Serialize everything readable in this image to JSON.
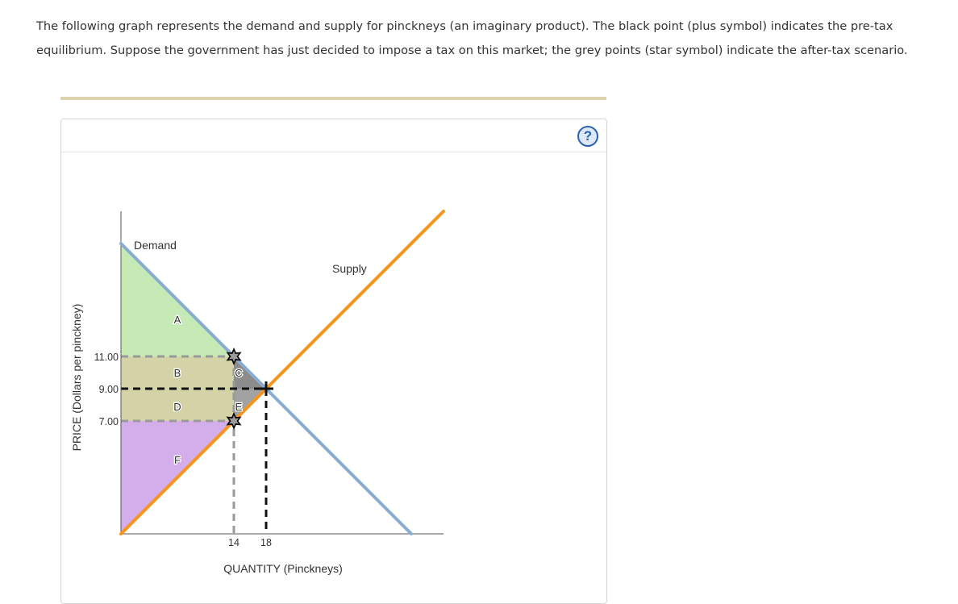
{
  "question": {
    "text": "The following graph represents the demand and supply for pinckneys (an imaginary product). The black point (plus symbol) indicates the pre-tax equilibrium. Suppose the government has just decided to impose a tax on this market; the grey points (star symbol) indicate the after-tax scenario."
  },
  "help": {
    "label": "?"
  },
  "colors": {
    "demand": "#89acd1",
    "supply": "#f7941d",
    "area_a": "#c5eab5",
    "area_bd": "#d4d3a8",
    "area_c": "#8c8c8c",
    "area_e": "#a2a2a2",
    "area_f": "#d4aeea",
    "pre_tax_point": "#000000",
    "after_tax_points": "#555555",
    "dash_grey": "#999999"
  },
  "chart_data": {
    "type": "line",
    "xlabel": "QUANTITY (Pinckneys)",
    "ylabel": "PRICE (Dollars per pinckney)",
    "xlim": [
      0,
      45
    ],
    "ylim": [
      0,
      20
    ],
    "x_ticks": [
      14,
      18
    ],
    "y_ticks": [
      "11.00",
      "9.00",
      "7.00"
    ],
    "series": [
      {
        "name": "Demand",
        "points": [
          [
            0,
            18
          ],
          [
            36,
            0
          ]
        ]
      },
      {
        "name": "Supply",
        "points": [
          [
            0,
            0
          ],
          [
            40,
            20
          ]
        ]
      }
    ],
    "pre_tax_equilibrium": {
      "x": 18,
      "y": 9
    },
    "after_tax_points": [
      {
        "x": 14,
        "y": 11
      },
      {
        "x": 14,
        "y": 7
      }
    ],
    "areas": [
      {
        "label": "A",
        "points": [
          [
            0,
            18
          ],
          [
            0,
            11
          ],
          [
            14,
            11
          ]
        ]
      },
      {
        "label": "B",
        "points": [
          [
            0,
            11
          ],
          [
            14,
            11
          ],
          [
            14,
            9
          ],
          [
            0,
            9
          ]
        ]
      },
      {
        "label": "C",
        "points": [
          [
            14,
            11
          ],
          [
            18,
            9
          ],
          [
            14,
            9
          ]
        ]
      },
      {
        "label": "D",
        "points": [
          [
            0,
            9
          ],
          [
            14,
            9
          ],
          [
            14,
            7
          ],
          [
            0,
            7
          ]
        ]
      },
      {
        "label": "E",
        "points": [
          [
            14,
            9
          ],
          [
            18,
            9
          ],
          [
            14,
            7
          ]
        ]
      },
      {
        "label": "F",
        "points": [
          [
            0,
            7
          ],
          [
            14,
            7
          ],
          [
            0,
            0
          ]
        ]
      }
    ],
    "area_label_positions": {
      "A": [
        7,
        13.3
      ],
      "B": [
        7,
        10
      ],
      "C": [
        14.6,
        10
      ],
      "D": [
        7,
        7.9
      ],
      "E": [
        14.6,
        7.9
      ],
      "F": [
        7,
        4.6
      ]
    }
  }
}
